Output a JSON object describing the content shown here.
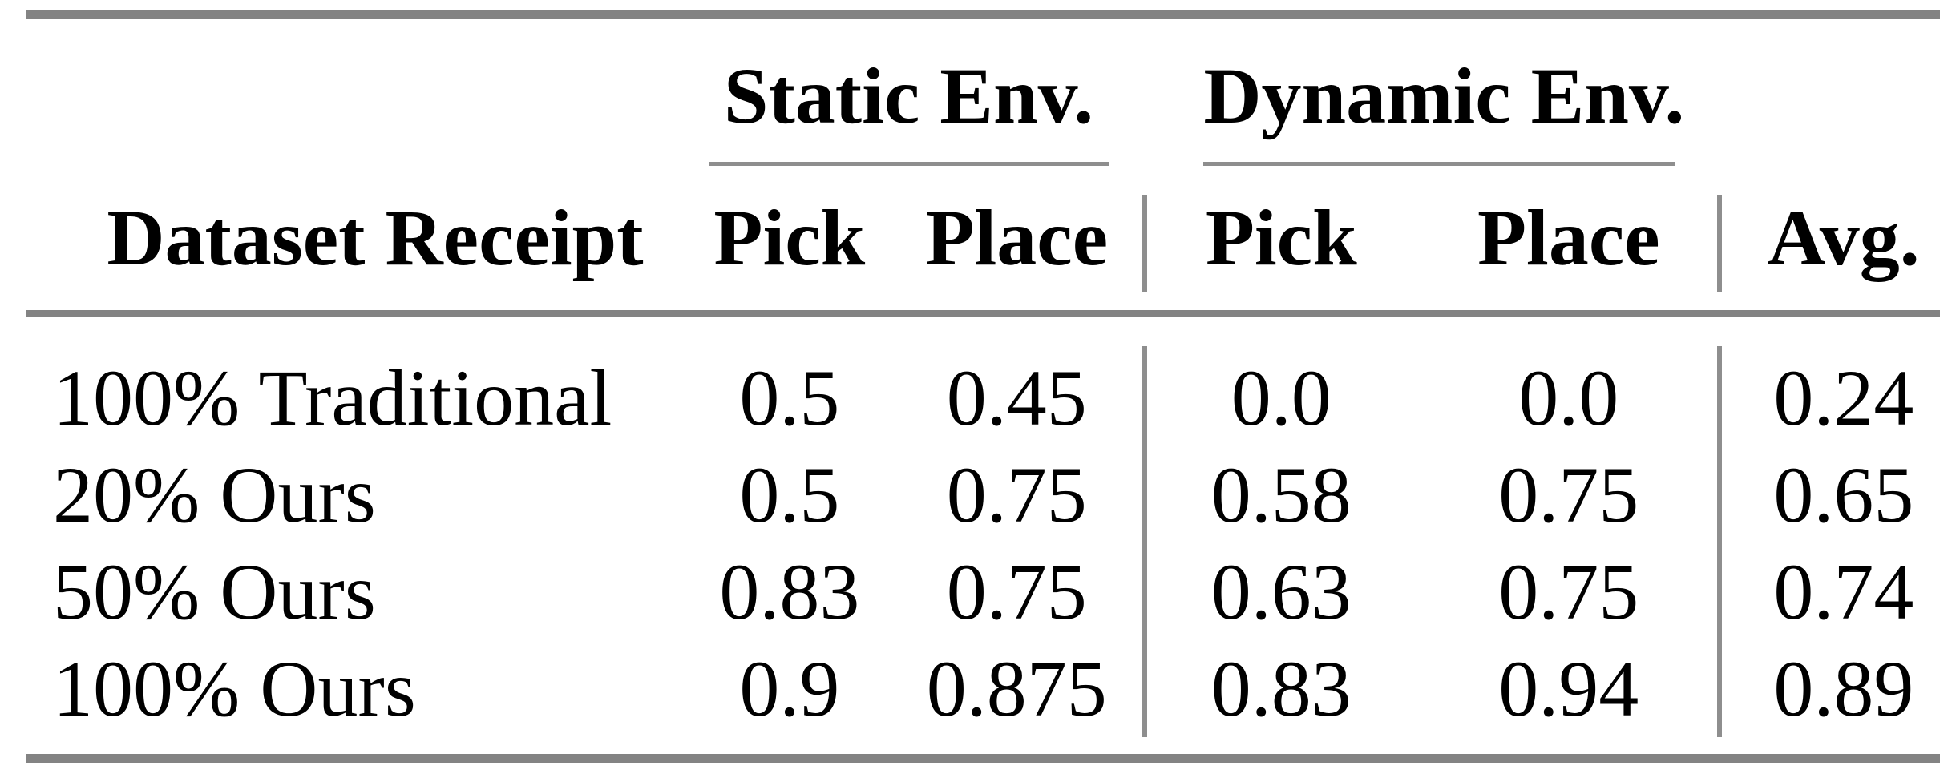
{
  "page": {
    "background_color": "#ffffff",
    "text_color": "#000000"
  },
  "table": {
    "style": {
      "thick_rule_color": "#838383",
      "thin_rule_color": "#8e8e8e"
    },
    "group_headers": [
      {
        "label": "Static Env."
      },
      {
        "label": "Dynamic Env."
      }
    ],
    "columns": [
      {
        "key": "dataset",
        "label": "Dataset Receipt"
      },
      {
        "key": "static_pick",
        "label": "Pick"
      },
      {
        "key": "static_place",
        "label": "Place"
      },
      {
        "key": "dynamic_pick",
        "label": "Pick"
      },
      {
        "key": "dynamic_place",
        "label": "Place"
      },
      {
        "key": "avg",
        "label": "Avg."
      }
    ],
    "rows": [
      {
        "dataset": "100% Traditional",
        "static_pick": "0.5",
        "static_place": "0.45",
        "dynamic_pick": "0.0",
        "dynamic_place": "0.0",
        "avg": "0.24"
      },
      {
        "dataset": "20% Ours",
        "static_pick": "0.5",
        "static_place": "0.75",
        "dynamic_pick": "0.58",
        "dynamic_place": "0.75",
        "avg": "0.65"
      },
      {
        "dataset": "50% Ours",
        "static_pick": "0.83",
        "static_place": "0.75",
        "dynamic_pick": "0.63",
        "dynamic_place": "0.75",
        "avg": "0.74"
      },
      {
        "dataset": "100% Ours",
        "static_pick": "0.9",
        "static_place": "0.875",
        "dynamic_pick": "0.83",
        "dynamic_place": "0.94",
        "avg": "0.89"
      }
    ]
  }
}
